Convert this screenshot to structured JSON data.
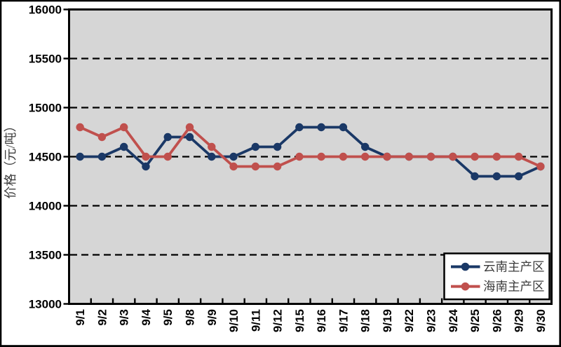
{
  "figure": {
    "background": "#ffffff",
    "border_color": "#000000",
    "plot_background": "#d6d6d6",
    "axis_color": "#000000",
    "gridline_color": "#000000",
    "gridline_style": "dashed",
    "text_color": "#000000",
    "cjk_text_color": "#3d3d3d"
  },
  "chart_data": {
    "type": "line",
    "title": "",
    "xlabel": "",
    "ylabel": "价格（元/吨）",
    "ylim": [
      13000,
      16000
    ],
    "ytick_step": 500,
    "yticks": [
      13000,
      13500,
      14000,
      14500,
      15000,
      15500,
      16000
    ],
    "grid": "horizontal dashed, on",
    "legend_position": "inside bottom-right",
    "categories": [
      "9/1",
      "9/2",
      "9/3",
      "9/4",
      "9/5",
      "9/8",
      "9/9",
      "9/10",
      "9/11",
      "9/12",
      "9/15",
      "9/16",
      "9/17",
      "9/18",
      "9/19",
      "9/22",
      "9/23",
      "9/24",
      "9/25",
      "9/26",
      "9/29",
      "9/30"
    ],
    "series": [
      {
        "name": "云南主产区",
        "color": "#1a3866",
        "marker": "circle",
        "values": [
          14500,
          14500,
          14600,
          14400,
          14700,
          14700,
          14500,
          14500,
          14600,
          14600,
          14800,
          14800,
          14800,
          14600,
          14500,
          14500,
          14500,
          14500,
          14300,
          14300,
          14300,
          14400
        ]
      },
      {
        "name": "海南主产区",
        "color": "#c0504d",
        "marker": "circle",
        "values": [
          14800,
          14700,
          14800,
          14500,
          14500,
          14800,
          14600,
          14400,
          14400,
          14400,
          14500,
          14500,
          14500,
          14500,
          14500,
          14500,
          14500,
          14500,
          14500,
          14500,
          14500,
          14400
        ]
      }
    ]
  }
}
